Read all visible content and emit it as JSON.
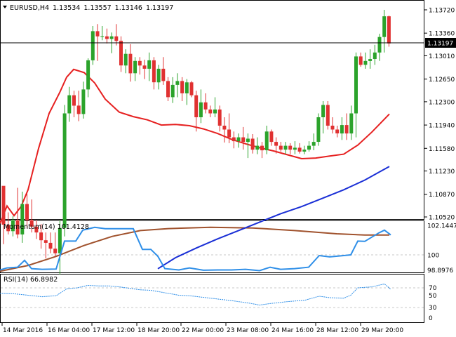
{
  "main_header": {
    "symbol": "EURUSD,H4",
    "open": "1.13534",
    "high": "1.13557",
    "low": "1.13146",
    "close": "1.13197"
  },
  "current_price_label": "1.13197",
  "price_axis_labels": [
    "1.13720",
    "1.13360",
    "1.13010",
    "1.12650",
    "1.12300",
    "1.11940",
    "1.11580",
    "1.11230",
    "1.10870",
    "1.10520"
  ],
  "momentum_header": "Momentum(14) 101.4128",
  "momentum_axis_labels": [
    "102.1447",
    "100",
    "98.8976"
  ],
  "rsi_header": "RSI(14) 66.8982",
  "rsi_axis_labels": [
    "70",
    "50",
    "30",
    "0"
  ],
  "time_labels": [
    "14 Mar 2016",
    "16 Mar 04:00",
    "17 Mar 12:00",
    "18 Mar 20:00",
    "22 Mar 00:00",
    "23 Mar 08:00",
    "24 Mar 16:00",
    "28 Mar 12:00",
    "29 Mar 20:00"
  ],
  "colors": {
    "bull": "#2ba32b",
    "bear": "#e03131",
    "sma_fast": "#e62020",
    "sma_mid": "#1a2fd6",
    "sma_slow": "#a0522d",
    "indicator": "#2f8fe8"
  },
  "chart_data": {
    "type": "candlestick",
    "symbol": "EURUSD",
    "timeframe": "H4",
    "ylim": [
      1.1052,
      1.1372
    ],
    "candles_ohlc": [
      [
        1.11,
        1.101,
        1.104,
        1.104
      ],
      [
        1.104,
        1.1059,
        1.1025,
        1.103
      ],
      [
        1.103,
        1.1053,
        1.1022,
        1.1047
      ],
      [
        1.1047,
        1.1097,
        1.1019,
        1.1025
      ],
      [
        1.1025,
        1.1091,
        1.1012,
        1.1072
      ],
      [
        1.1072,
        1.1091,
        1.1035,
        1.1047
      ],
      [
        1.1047,
        1.1079,
        1.1028,
        1.1037
      ],
      [
        1.1037,
        1.1047,
        1.1018,
        1.1028
      ],
      [
        1.1028,
        1.1041,
        1.1003,
        1.1016
      ],
      [
        1.1016,
        1.1028,
        1.0988,
        1.1012
      ],
      [
        1.1012,
        1.1028,
        1.0996,
        1.1003
      ],
      [
        1.1003,
        1.1028,
        1.099,
        1.0996
      ],
      [
        1.0996,
        1.1047,
        1.0963,
        1.1035
      ],
      [
        1.1035,
        1.1225,
        1.1022,
        1.1212
      ],
      [
        1.1212,
        1.1253,
        1.1199,
        1.124
      ],
      [
        1.124,
        1.1247,
        1.1206,
        1.1224
      ],
      [
        1.1224,
        1.1247,
        1.12,
        1.1211
      ],
      [
        1.1211,
        1.1261,
        1.1204,
        1.1249
      ],
      [
        1.1249,
        1.1297,
        1.1237,
        1.1294
      ],
      [
        1.1294,
        1.1347,
        1.1287,
        1.1339
      ],
      [
        1.1339,
        1.135,
        1.1293,
        1.1331
      ],
      [
        1.1331,
        1.1347,
        1.1325,
        1.1331
      ],
      [
        1.1331,
        1.1343,
        1.132,
        1.1327
      ],
      [
        1.1327,
        1.1337,
        1.1305,
        1.1331
      ],
      [
        1.1331,
        1.135,
        1.1317,
        1.1324
      ],
      [
        1.1324,
        1.1331,
        1.1276,
        1.1286
      ],
      [
        1.1286,
        1.1311,
        1.1274,
        1.1304
      ],
      [
        1.1304,
        1.1319,
        1.1261,
        1.1274
      ],
      [
        1.1274,
        1.1299,
        1.1262,
        1.1293
      ],
      [
        1.1293,
        1.1299,
        1.1272,
        1.1286
      ],
      [
        1.1286,
        1.1295,
        1.1265,
        1.1281
      ],
      [
        1.1281,
        1.1306,
        1.1262,
        1.1294
      ],
      [
        1.1294,
        1.1299,
        1.1249,
        1.126
      ],
      [
        1.126,
        1.1287,
        1.1249,
        1.1281
      ],
      [
        1.1281,
        1.1299,
        1.1256,
        1.1262
      ],
      [
        1.1262,
        1.1268,
        1.1231,
        1.1237
      ],
      [
        1.1237,
        1.1268,
        1.1228,
        1.1256
      ],
      [
        1.1256,
        1.1274,
        1.1237,
        1.1262
      ],
      [
        1.1262,
        1.1268,
        1.1231,
        1.1243
      ],
      [
        1.1243,
        1.1265,
        1.1225,
        1.126
      ],
      [
        1.126,
        1.1262,
        1.1237,
        1.124
      ],
      [
        1.124,
        1.1247,
        1.1184,
        1.1206
      ],
      [
        1.1206,
        1.1249,
        1.1197,
        1.1229
      ],
      [
        1.1229,
        1.1243,
        1.1212,
        1.1218
      ],
      [
        1.1218,
        1.1224,
        1.1206,
        1.1212
      ],
      [
        1.1212,
        1.1237,
        1.1206,
        1.1218
      ],
      [
        1.1218,
        1.1224,
        1.1184,
        1.1193
      ],
      [
        1.1193,
        1.1206,
        1.1167,
        1.1187
      ],
      [
        1.1187,
        1.1212,
        1.1166,
        1.1175
      ],
      [
        1.1175,
        1.1184,
        1.1158,
        1.1169
      ],
      [
        1.1169,
        1.1181,
        1.1159,
        1.1175
      ],
      [
        1.1175,
        1.1191,
        1.1156,
        1.1168
      ],
      [
        1.1168,
        1.1181,
        1.1143,
        1.1173
      ],
      [
        1.1173,
        1.118,
        1.115,
        1.1156
      ],
      [
        1.1156,
        1.1175,
        1.1149,
        1.1162
      ],
      [
        1.1162,
        1.1168,
        1.1143,
        1.1155
      ],
      [
        1.1155,
        1.1193,
        1.1149,
        1.1184
      ],
      [
        1.1184,
        1.1187,
        1.1162,
        1.1168
      ],
      [
        1.1168,
        1.1175,
        1.115,
        1.1162
      ],
      [
        1.1162,
        1.1168,
        1.1153,
        1.1156
      ],
      [
        1.1156,
        1.1168,
        1.1149,
        1.1162
      ],
      [
        1.1162,
        1.1166,
        1.1149,
        1.1156
      ],
      [
        1.1156,
        1.1169,
        1.1149,
        1.1159
      ],
      [
        1.1159,
        1.1166,
        1.115,
        1.1153
      ],
      [
        1.1153,
        1.1162,
        1.1149,
        1.1156
      ],
      [
        1.1156,
        1.1169,
        1.1153,
        1.1162
      ],
      [
        1.1162,
        1.1181,
        1.1155,
        1.1168
      ],
      [
        1.1168,
        1.1212,
        1.1162,
        1.1206
      ],
      [
        1.1206,
        1.1231,
        1.1181,
        1.1225
      ],
      [
        1.1225,
        1.1231,
        1.1187,
        1.1193
      ],
      [
        1.1193,
        1.1206,
        1.1181,
        1.1187
      ],
      [
        1.1187,
        1.1193,
        1.1175,
        1.1181
      ],
      [
        1.1181,
        1.1206,
        1.1171,
        1.1194
      ],
      [
        1.1194,
        1.1212,
        1.1171,
        1.1181
      ],
      [
        1.1181,
        1.1224,
        1.1171,
        1.1212
      ],
      [
        1.1212,
        1.1306,
        1.1175,
        1.13
      ],
      [
        1.13,
        1.1306,
        1.1284,
        1.1287
      ],
      [
        1.1287,
        1.1306,
        1.1281,
        1.1293
      ],
      [
        1.1293,
        1.1311,
        1.1281,
        1.1296
      ],
      [
        1.1296,
        1.1318,
        1.1287,
        1.1306
      ],
      [
        1.1306,
        1.1335,
        1.1293,
        1.133
      ],
      [
        1.133,
        1.1372,
        1.1306,
        1.1362
      ],
      [
        1.1362,
        1.1363,
        1.1315,
        1.132
      ]
    ],
    "indicators": {
      "moving_average_red": [
        [
          0,
          1.1042
        ],
        [
          10,
          1.1069
        ],
        [
          20,
          1.1054
        ],
        [
          30,
          1.1068
        ],
        [
          40,
          1.1094
        ],
        [
          55,
          1.1158
        ],
        [
          70,
          1.1212
        ],
        [
          85,
          1.1244
        ],
        [
          95,
          1.1268
        ],
        [
          105,
          1.128
        ],
        [
          120,
          1.1275
        ],
        [
          135,
          1.1259
        ],
        [
          150,
          1.1234
        ],
        [
          170,
          1.1214
        ],
        [
          190,
          1.1207
        ],
        [
          210,
          1.1202
        ],
        [
          230,
          1.1194
        ],
        [
          250,
          1.1195
        ],
        [
          270,
          1.1193
        ],
        [
          290,
          1.1188
        ],
        [
          310,
          1.1181
        ],
        [
          330,
          1.1172
        ],
        [
          350,
          1.1165
        ],
        [
          370,
          1.1159
        ],
        [
          390,
          1.1154
        ],
        [
          410,
          1.1148
        ],
        [
          430,
          1.1142
        ],
        [
          450,
          1.1143
        ],
        [
          470,
          1.1146
        ],
        [
          490,
          1.1149
        ],
        [
          510,
          1.1163
        ],
        [
          530,
          1.1183
        ],
        [
          555,
          1.1211
        ]
      ],
      "moving_average_blue": [
        [
          225,
          1.0972
        ],
        [
          250,
          1.0989
        ],
        [
          280,
          1.1004
        ],
        [
          310,
          1.1018
        ],
        [
          340,
          1.1031
        ],
        [
          370,
          1.1044
        ],
        [
          400,
          1.1057
        ],
        [
          430,
          1.1068
        ],
        [
          460,
          1.1081
        ],
        [
          490,
          1.1094
        ],
        [
          520,
          1.1109
        ],
        [
          540,
          1.1121
        ],
        [
          555,
          1.113
        ]
      ],
      "moving_average_brown": [
        [
          0,
          1.0968
        ],
        [
          40,
          1.0977
        ],
        [
          80,
          1.0991
        ],
        [
          120,
          1.1008
        ],
        [
          160,
          1.1022
        ],
        [
          200,
          1.1031
        ],
        [
          240,
          1.1034
        ],
        [
          300,
          1.1036
        ],
        [
          360,
          1.1035
        ],
        [
          420,
          1.1031
        ],
        [
          480,
          1.1026
        ],
        [
          520,
          1.1024
        ],
        [
          555,
          1.1024
        ]
      ],
      "momentum_14": [
        [
          0,
          98.9
        ],
        [
          10,
          99.05
        ],
        [
          25,
          99.1
        ],
        [
          35,
          99.6
        ],
        [
          45,
          99.0
        ],
        [
          60,
          98.95
        ],
        [
          80,
          98.97
        ],
        [
          92,
          101.0
        ],
        [
          108,
          101.0
        ],
        [
          118,
          101.8
        ],
        [
          135,
          102.0
        ],
        [
          150,
          101.9
        ],
        [
          165,
          101.9
        ],
        [
          190,
          101.9
        ],
        [
          203,
          100.4
        ],
        [
          215,
          100.4
        ],
        [
          225,
          99.9
        ],
        [
          235,
          99.0
        ],
        [
          255,
          98.9
        ],
        [
          270,
          99.05
        ],
        [
          290,
          98.88
        ],
        [
          310,
          98.9
        ],
        [
          330,
          98.9
        ],
        [
          350,
          98.95
        ],
        [
          370,
          98.85
        ],
        [
          385,
          99.1
        ],
        [
          400,
          98.95
        ],
        [
          420,
          99.0
        ],
        [
          440,
          99.1
        ],
        [
          455,
          99.95
        ],
        [
          470,
          99.85
        ],
        [
          490,
          99.95
        ],
        [
          500,
          100.0
        ],
        [
          510,
          101.0
        ],
        [
          520,
          100.98
        ],
        [
          540,
          101.6
        ],
        [
          548,
          101.8
        ],
        [
          557,
          101.45
        ]
      ],
      "rsi_14": [
        [
          0,
          59
        ],
        [
          20,
          58
        ],
        [
          40,
          55
        ],
        [
          60,
          52
        ],
        [
          80,
          54
        ],
        [
          95,
          68
        ],
        [
          110,
          70
        ],
        [
          125,
          75
        ],
        [
          140,
          74
        ],
        [
          155,
          74
        ],
        [
          170,
          72
        ],
        [
          200,
          66
        ],
        [
          215,
          65
        ],
        [
          235,
          60
        ],
        [
          255,
          55
        ],
        [
          270,
          54
        ],
        [
          300,
          49
        ],
        [
          330,
          44
        ],
        [
          355,
          39
        ],
        [
          370,
          35
        ],
        [
          385,
          38
        ],
        [
          410,
          42
        ],
        [
          435,
          45
        ],
        [
          455,
          53
        ],
        [
          470,
          50
        ],
        [
          490,
          49
        ],
        [
          500,
          55
        ],
        [
          510,
          70
        ],
        [
          530,
          72
        ],
        [
          548,
          78
        ],
        [
          557,
          67
        ]
      ]
    }
  }
}
